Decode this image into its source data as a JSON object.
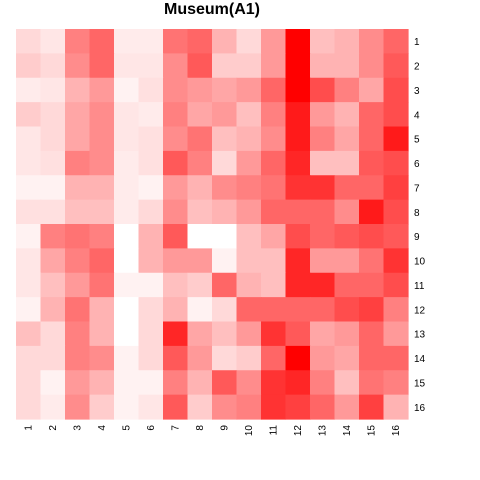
{
  "chart_data": {
    "type": "heatmap",
    "title": "Museum(A1)",
    "xlabel": "",
    "ylabel": "",
    "x_tick_labels": [
      "1",
      "2",
      "3",
      "4",
      "5",
      "6",
      "7",
      "8",
      "9",
      "10",
      "11",
      "12",
      "13",
      "14",
      "15",
      "16"
    ],
    "y_tick_labels": [
      "1",
      "2",
      "3",
      "4",
      "5",
      "6",
      "7",
      "8",
      "9",
      "10",
      "11",
      "12",
      "13",
      "14",
      "15",
      "16"
    ],
    "color_scale": {
      "low": "#ffffff",
      "high": "#ff0000"
    },
    "value_range": [
      0,
      1
    ],
    "grid": false,
    "legend": "none",
    "values": [
      [
        0.15,
        0.1,
        0.5,
        0.6,
        0.08,
        0.08,
        0.55,
        0.6,
        0.3,
        0.15,
        0.4,
        1.0,
        0.25,
        0.3,
        0.45,
        0.6
      ],
      [
        0.2,
        0.15,
        0.45,
        0.6,
        0.1,
        0.1,
        0.45,
        0.65,
        0.2,
        0.2,
        0.4,
        1.0,
        0.3,
        0.3,
        0.45,
        0.65
      ],
      [
        0.08,
        0.1,
        0.3,
        0.4,
        0.05,
        0.12,
        0.45,
        0.4,
        0.35,
        0.4,
        0.6,
        1.0,
        0.7,
        0.5,
        0.35,
        0.7
      ],
      [
        0.2,
        0.15,
        0.35,
        0.45,
        0.1,
        0.08,
        0.5,
        0.35,
        0.4,
        0.25,
        0.5,
        0.9,
        0.4,
        0.3,
        0.6,
        0.7
      ],
      [
        0.1,
        0.15,
        0.35,
        0.45,
        0.1,
        0.12,
        0.45,
        0.55,
        0.25,
        0.3,
        0.45,
        0.9,
        0.5,
        0.35,
        0.6,
        0.9
      ],
      [
        0.1,
        0.12,
        0.5,
        0.45,
        0.08,
        0.12,
        0.65,
        0.5,
        0.15,
        0.4,
        0.6,
        0.85,
        0.25,
        0.25,
        0.65,
        0.7
      ],
      [
        0.05,
        0.05,
        0.3,
        0.3,
        0.08,
        0.05,
        0.4,
        0.3,
        0.45,
        0.5,
        0.55,
        0.8,
        0.8,
        0.6,
        0.6,
        0.75
      ],
      [
        0.12,
        0.12,
        0.25,
        0.25,
        0.08,
        0.15,
        0.45,
        0.25,
        0.3,
        0.4,
        0.6,
        0.6,
        0.6,
        0.45,
        0.9,
        0.7
      ],
      [
        0.05,
        0.5,
        0.55,
        0.5,
        0.0,
        0.3,
        0.65,
        0.0,
        0.0,
        0.25,
        0.35,
        0.7,
        0.6,
        0.65,
        0.7,
        0.65
      ],
      [
        0.1,
        0.35,
        0.5,
        0.6,
        0.0,
        0.3,
        0.4,
        0.4,
        0.05,
        0.25,
        0.25,
        0.85,
        0.4,
        0.4,
        0.55,
        0.8
      ],
      [
        0.1,
        0.25,
        0.4,
        0.55,
        0.05,
        0.05,
        0.25,
        0.2,
        0.6,
        0.3,
        0.25,
        0.85,
        0.85,
        0.6,
        0.6,
        0.7
      ],
      [
        0.05,
        0.3,
        0.55,
        0.3,
        0.0,
        0.15,
        0.3,
        0.05,
        0.15,
        0.6,
        0.6,
        0.6,
        0.6,
        0.7,
        0.75,
        0.5
      ],
      [
        0.25,
        0.15,
        0.5,
        0.3,
        0.0,
        0.15,
        0.85,
        0.35,
        0.25,
        0.4,
        0.8,
        0.65,
        0.35,
        0.4,
        0.6,
        0.4
      ],
      [
        0.15,
        0.15,
        0.5,
        0.45,
        0.05,
        0.15,
        0.65,
        0.4,
        0.15,
        0.2,
        0.6,
        1.0,
        0.4,
        0.35,
        0.6,
        0.6
      ],
      [
        0.15,
        0.05,
        0.4,
        0.3,
        0.05,
        0.05,
        0.5,
        0.3,
        0.65,
        0.45,
        0.8,
        0.85,
        0.5,
        0.25,
        0.55,
        0.5
      ],
      [
        0.15,
        0.08,
        0.45,
        0.2,
        0.05,
        0.1,
        0.65,
        0.2,
        0.45,
        0.5,
        0.8,
        0.75,
        0.6,
        0.4,
        0.75,
        0.3
      ]
    ]
  }
}
